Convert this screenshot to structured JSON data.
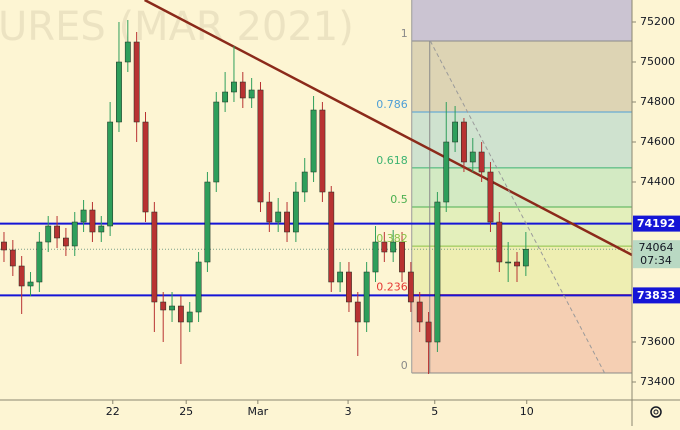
{
  "chart_data": {
    "type": "candlestick",
    "watermark": "URES (MAR 2021)",
    "xlim": [
      -0.45,
      71
    ],
    "ylim": [
      73310,
      75310
    ],
    "yticks": [
      73400,
      73600,
      74400,
      74600,
      74800,
      75000,
      75200
    ],
    "xticks": [
      {
        "value": 12.3,
        "label": "22"
      },
      {
        "value": 20.6,
        "label": "25"
      },
      {
        "value": 28.7,
        "label": "Mar"
      },
      {
        "value": 38.9,
        "label": "3"
      },
      {
        "value": 48.7,
        "label": "5"
      },
      {
        "value": 59.1,
        "label": "10"
      }
    ],
    "up_color": "#2e9e5b",
    "down_color": "#b83232",
    "open": [
      74100,
      74060,
      73980,
      73880,
      73900,
      74100,
      74180,
      74120,
      74080,
      74200,
      74260,
      74150,
      74180,
      74700,
      75000,
      75100,
      74700,
      74250,
      73800,
      73760,
      73780,
      73700,
      73750,
      74000,
      74400,
      74800,
      74850,
      74900,
      74820,
      74860,
      74300,
      74200,
      74250,
      74150,
      74350,
      74450,
      74760,
      74350,
      73900,
      73950,
      73800,
      73700,
      73950,
      74100,
      74050,
      74100,
      73950,
      73800,
      73700,
      73600,
      74300,
      74600,
      74700,
      74500,
      74550,
      74450,
      74200,
      74000,
      74000,
      73980
    ],
    "high": [
      74150,
      74110,
      74030,
      73950,
      74150,
      74230,
      74230,
      74170,
      74250,
      74310,
      74300,
      74230,
      74800,
      75200,
      75210,
      75150,
      74750,
      74300,
      73850,
      73850,
      73830,
      73800,
      74050,
      74450,
      74850,
      74950,
      75080,
      74950,
      74920,
      74900,
      74350,
      74320,
      74300,
      74400,
      74520,
      74830,
      74800,
      74380,
      74000,
      74000,
      73850,
      74000,
      74180,
      74150,
      74160,
      74150,
      74000,
      73850,
      73750,
      74350,
      74800,
      74780,
      74720,
      74620,
      74600,
      74500,
      74250,
      74100,
      74050,
      74150
    ],
    "low": [
      74000,
      73930,
      73740,
      73830,
      73850,
      74050,
      74070,
      74030,
      74030,
      74150,
      74100,
      74100,
      74130,
      74650,
      74950,
      74600,
      74200,
      73650,
      73600,
      73700,
      73490,
      73650,
      73700,
      73950,
      74350,
      74750,
      74800,
      74770,
      74770,
      74250,
      74150,
      74150,
      74100,
      74100,
      74300,
      74400,
      74300,
      73850,
      73850,
      73750,
      73530,
      73650,
      73900,
      74000,
      74000,
      73900,
      73750,
      73650,
      73440,
      73550,
      74250,
      74550,
      74450,
      74450,
      74400,
      74150,
      73950,
      73900,
      73900,
      73930
    ],
    "close": [
      74060,
      73980,
      73880,
      73900,
      74100,
      74180,
      74120,
      74080,
      74200,
      74260,
      74150,
      74180,
      74700,
      75000,
      75100,
      74700,
      74250,
      73800,
      73760,
      73780,
      73700,
      73750,
      74000,
      74400,
      74800,
      74850,
      74900,
      74820,
      74860,
      74300,
      74200,
      74250,
      74150,
      74350,
      74450,
      74760,
      74350,
      73900,
      73950,
      73800,
      73700,
      73950,
      74100,
      74050,
      74100,
      73950,
      73800,
      73700,
      73600,
      74300,
      74600,
      74700,
      74500,
      74550,
      74450,
      74200,
      74000,
      74000,
      73980,
      74064
    ],
    "hlines": [
      {
        "value": 74192,
        "color": "#1515d6"
      },
      {
        "value": 73833,
        "color": "#1515d6"
      }
    ],
    "last_price": 74064,
    "countdown": "07:34",
    "last_price_color": "#b9d9c3",
    "trend_line": {
      "points": [
        [
          15.9,
          75310
        ],
        [
          71,
          74035
        ]
      ],
      "color": "#8b2a1a"
    },
    "diagonal": {
      "points": [
        [
          48.2,
          75105
        ],
        [
          67.9,
          73445
        ]
      ],
      "color": "#9a9a9a"
    },
    "fib": {
      "x": [
        46.1,
        71
      ],
      "high": 75105,
      "low": 73445,
      "top_fill": "#cbc4d2",
      "levels": [
        {
          "value": 1,
          "color": "#8a8a8a",
          "fill": "#ddd4b4"
        },
        {
          "value": 0.786,
          "color": "#4f9fd6",
          "fill": "#cfe2cf"
        },
        {
          "value": 0.618,
          "color": "#3cb371",
          "fill": "#d3eac3"
        },
        {
          "value": 0.5,
          "color": "#4caf50",
          "fill": "#e3efbb"
        },
        {
          "value": 0.382,
          "color": "#8bc34a",
          "fill": "#eeeeb2"
        },
        {
          "value": 0.236,
          "color": "#e53935",
          "fill": "#f5cfb3"
        },
        {
          "value": 0,
          "color": "#8a8a8a"
        }
      ]
    }
  }
}
